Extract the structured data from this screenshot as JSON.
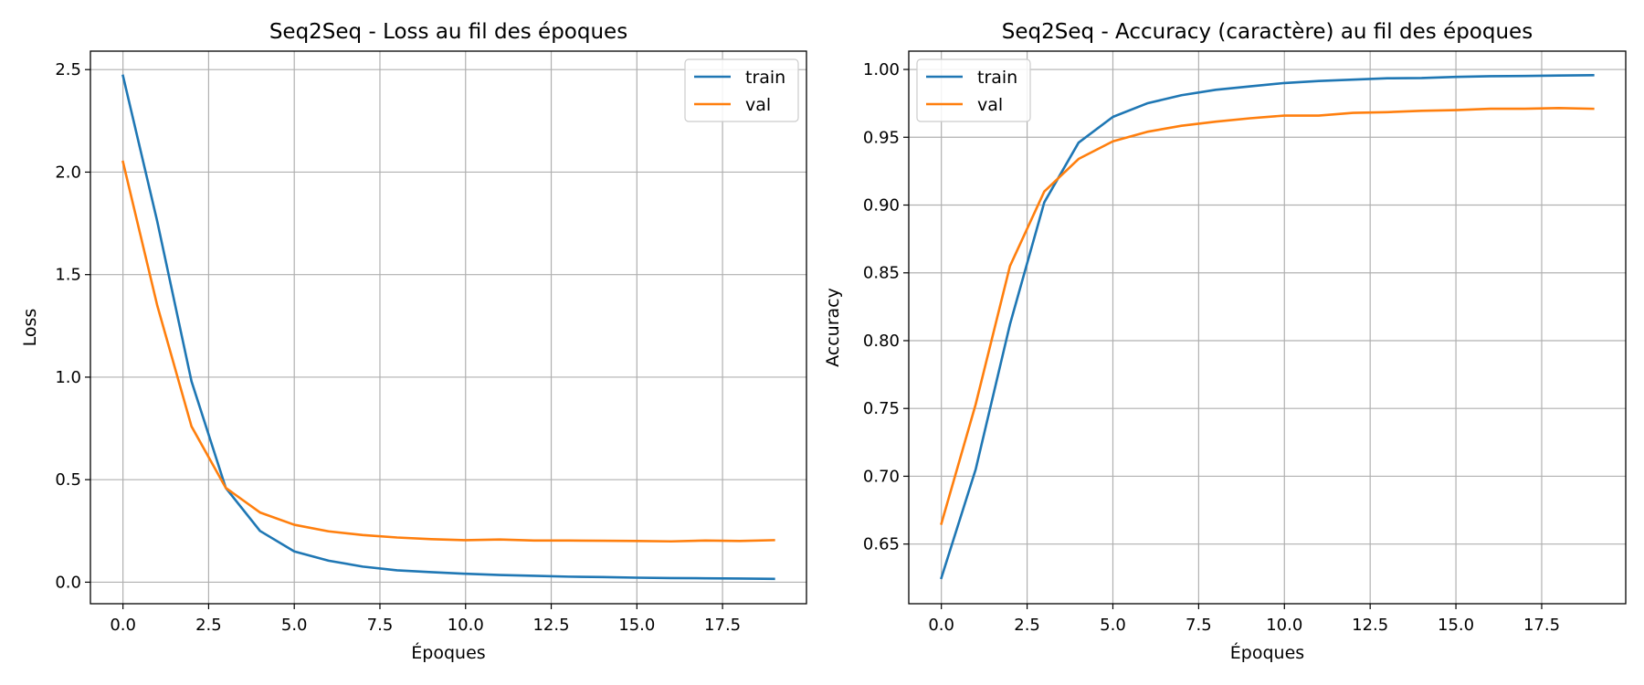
{
  "chart_data": [
    {
      "type": "line",
      "title": "Seq2Seq - Loss au fil des époques",
      "xlabel": "Époques",
      "ylabel": "Loss",
      "xlim": [
        -0.95,
        19.95
      ],
      "ylim": [
        -0.105,
        2.59
      ],
      "xticks": [
        0.0,
        2.5,
        5.0,
        7.5,
        10.0,
        12.5,
        15.0,
        17.5
      ],
      "xtick_labels": [
        "0.0",
        "2.5",
        "5.0",
        "7.5",
        "10.0",
        "12.5",
        "15.0",
        "17.5"
      ],
      "yticks": [
        0.0,
        0.5,
        1.0,
        1.5,
        2.0,
        2.5
      ],
      "ytick_labels": [
        "0.0",
        "0.5",
        "1.0",
        "1.5",
        "2.0",
        "2.5"
      ],
      "grid": true,
      "legend_position": "top-right",
      "x": [
        0,
        1,
        2,
        3,
        4,
        5,
        6,
        7,
        8,
        9,
        10,
        11,
        12,
        13,
        14,
        15,
        16,
        17,
        18,
        19
      ],
      "series": [
        {
          "name": "train",
          "color": "#1f77b4",
          "values": [
            2.47,
            1.76,
            0.98,
            0.46,
            0.25,
            0.15,
            0.105,
            0.076,
            0.058,
            0.049,
            0.041,
            0.035,
            0.031,
            0.027,
            0.025,
            0.022,
            0.02,
            0.019,
            0.018,
            0.016
          ]
        },
        {
          "name": "val",
          "color": "#ff7f0e",
          "values": [
            2.05,
            1.35,
            0.76,
            0.46,
            0.34,
            0.28,
            0.248,
            0.23,
            0.218,
            0.21,
            0.205,
            0.208,
            0.203,
            0.203,
            0.202,
            0.201,
            0.199,
            0.203,
            0.201,
            0.205
          ]
        }
      ]
    },
    {
      "type": "line",
      "title": "Seq2Seq - Accuracy (caractère) au fil des époques",
      "xlabel": "Époques",
      "ylabel": "Accuracy",
      "xlim": [
        -0.95,
        19.95
      ],
      "ylim": [
        0.606,
        1.0135
      ],
      "xticks": [
        0.0,
        2.5,
        5.0,
        7.5,
        10.0,
        12.5,
        15.0,
        17.5
      ],
      "xtick_labels": [
        "0.0",
        "2.5",
        "5.0",
        "7.5",
        "10.0",
        "12.5",
        "15.0",
        "17.5"
      ],
      "yticks": [
        0.65,
        0.7,
        0.75,
        0.8,
        0.85,
        0.9,
        0.95,
        1.0
      ],
      "ytick_labels": [
        "0.65",
        "0.70",
        "0.75",
        "0.80",
        "0.85",
        "0.90",
        "0.95",
        "1.00"
      ],
      "grid": true,
      "legend_position": "top-left",
      "x": [
        0,
        1,
        2,
        3,
        4,
        5,
        6,
        7,
        8,
        9,
        10,
        11,
        12,
        13,
        14,
        15,
        16,
        17,
        18,
        19
      ],
      "series": [
        {
          "name": "train",
          "color": "#1f77b4",
          "values": [
            0.625,
            0.705,
            0.812,
            0.902,
            0.946,
            0.965,
            0.975,
            0.981,
            0.985,
            0.9875,
            0.99,
            0.9915,
            0.9925,
            0.9935,
            0.9937,
            0.9945,
            0.995,
            0.9952,
            0.9955,
            0.9958
          ]
        },
        {
          "name": "val",
          "color": "#ff7f0e",
          "values": [
            0.665,
            0.753,
            0.855,
            0.91,
            0.934,
            0.947,
            0.954,
            0.9585,
            0.9615,
            0.964,
            0.966,
            0.966,
            0.968,
            0.9685,
            0.9695,
            0.97,
            0.971,
            0.971,
            0.9715,
            0.971
          ]
        }
      ]
    }
  ]
}
